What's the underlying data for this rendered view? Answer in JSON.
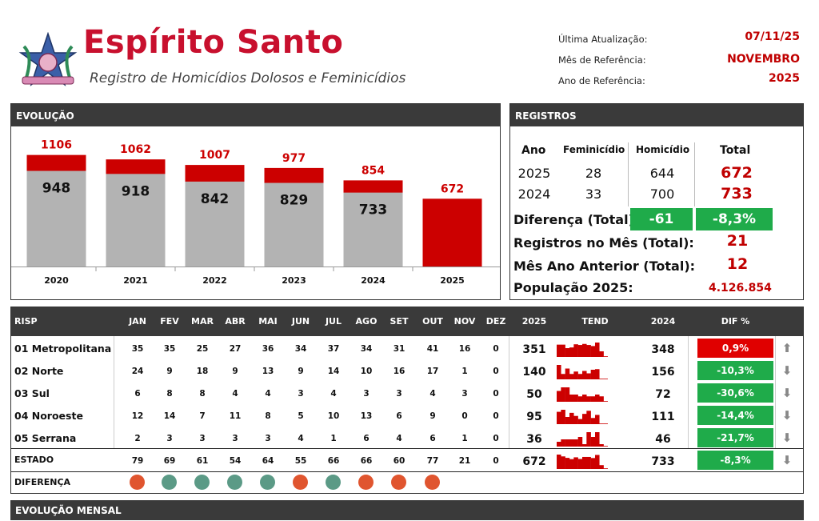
{
  "header": {
    "title": "Espírito Santo",
    "subtitle": "Registro de Homicídios Dolosos e Feminicídios",
    "meta": [
      {
        "label": "Última Atualização:",
        "value": "07/11/25"
      },
      {
        "label": "Mês de Referência:",
        "value": "NOVEMBRO"
      },
      {
        "label": "Ano de Referência:",
        "value": "2025"
      }
    ]
  },
  "icons": {
    "logo": "coat-of-arms-icon",
    "trend_up": "arrow-up-icon",
    "trend_down": "arrow-down-icon"
  },
  "colors": {
    "brand_red": "#c8102e",
    "bar_red": "#cc0000",
    "bar_gray": "#b3b3b3",
    "good_green": "#1fab4a",
    "bad_red": "#e00000",
    "dot_red": "#e0552f",
    "dot_teal": "#5b9a86",
    "header_dark": "#3a3a3a"
  },
  "evolucao": {
    "title": "EVOLUÇÃO",
    "chart_data": {
      "type": "bar",
      "categories": [
        "2020",
        "2021",
        "2022",
        "2023",
        "2024",
        "2025"
      ],
      "series": [
        {
          "values": [
            948,
            918,
            842,
            829,
            733,
            0
          ]
        },
        {
          "values": [
            1106,
            1062,
            1007,
            977,
            854,
            672
          ]
        }
      ],
      "ylim": [
        0,
        1200
      ]
    }
  },
  "registros": {
    "title": "REGISTROS",
    "headers": [
      "Ano",
      "Feminicídio",
      "Homicídio",
      "Total"
    ],
    "rows": [
      {
        "ano": "2025",
        "fem": "28",
        "hom": "644",
        "total": "672"
      },
      {
        "ano": "2024",
        "fem": "33",
        "hom": "700",
        "total": "733"
      }
    ],
    "diferenca_label": "Diferença (Total):",
    "diferenca_abs": "-61",
    "diferenca_pct": "-8,3%",
    "mes_label": "Registros no Mês (Total):",
    "mes_value": "21",
    "mes_ant_label": "Mês Ano Anterior (Total):",
    "mes_ant_value": "12",
    "pop_label": "População 2025:",
    "pop_value": "4.126.854"
  },
  "risp": {
    "headers": {
      "risp": "RISP",
      "months": [
        "JAN",
        "FEV",
        "MAR",
        "ABR",
        "MAI",
        "JUN",
        "JUL",
        "AGO",
        "SET",
        "OUT",
        "NOV",
        "DEZ"
      ],
      "y2025": "2025",
      "tend": "TEND",
      "y2024": "2024",
      "dif": "DIF %"
    },
    "rows": [
      {
        "name": "01 Metropolitana",
        "months": [
          "35",
          "35",
          "25",
          "27",
          "36",
          "34",
          "37",
          "34",
          "31",
          "41",
          "16",
          "0"
        ],
        "y2025": "351",
        "y2024": "348",
        "dif": "0,9%",
        "status": "up"
      },
      {
        "name": "02 Norte",
        "months": [
          "24",
          "9",
          "18",
          "9",
          "13",
          "9",
          "14",
          "10",
          "16",
          "17",
          "1",
          "0"
        ],
        "y2025": "140",
        "y2024": "156",
        "dif": "-10,3%",
        "status": "down"
      },
      {
        "name": "03 Sul",
        "months": [
          "6",
          "8",
          "8",
          "4",
          "4",
          "3",
          "4",
          "3",
          "3",
          "4",
          "3",
          "0"
        ],
        "y2025": "50",
        "y2024": "72",
        "dif": "-30,6%",
        "status": "down"
      },
      {
        "name": "04 Noroeste",
        "months": [
          "12",
          "14",
          "7",
          "11",
          "8",
          "5",
          "10",
          "13",
          "6",
          "9",
          "0",
          "0"
        ],
        "y2025": "95",
        "y2024": "111",
        "dif": "-14,4%",
        "status": "down"
      },
      {
        "name": "05 Serrana",
        "months": [
          "2",
          "3",
          "3",
          "3",
          "3",
          "4",
          "1",
          "6",
          "4",
          "6",
          "1",
          "0"
        ],
        "y2025": "36",
        "y2024": "46",
        "dif": "-21,7%",
        "status": "down"
      }
    ],
    "estado": {
      "name": "ESTADO",
      "months": [
        "79",
        "69",
        "61",
        "54",
        "64",
        "55",
        "66",
        "66",
        "60",
        "77",
        "21",
        "0"
      ],
      "y2025": "672",
      "y2024": "733",
      "dif": "-8,3%",
      "status": "down"
    },
    "diferenca": {
      "label": "DIFERENÇA",
      "dots": [
        "red",
        "teal",
        "teal",
        "teal",
        "teal",
        "red",
        "teal",
        "red",
        "red",
        "red"
      ]
    }
  },
  "mensal": {
    "title": "EVOLUÇÃO MENSAL"
  }
}
